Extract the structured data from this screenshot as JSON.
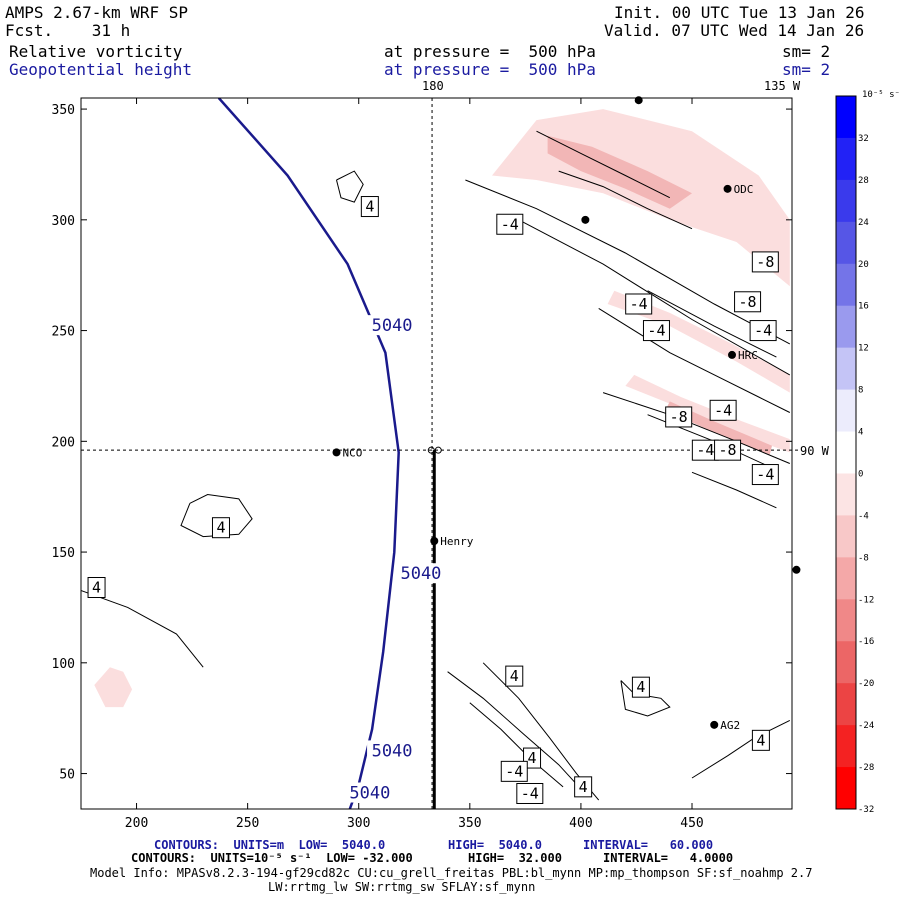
{
  "header": {
    "model": "AMPS 2.67-km WRF SP",
    "forecast": "Fcst.    31 h",
    "init": "Init. 00 UTC Tue 13 Jan 26",
    "valid": "Valid. 07 UTC Wed 14 Jan 26",
    "field1": "Relative vorticity",
    "field2": "Geopotential height",
    "pressure1": "at pressure =  500 hPa",
    "pressure2": "at pressure =  500 hPa",
    "sm1": "sm= 2",
    "sm2": "sm= 2"
  },
  "map": {
    "top_lon1": "180",
    "top_lon2": "135 W",
    "right_lon": "90 W",
    "stations": [
      "NCO",
      "Henry",
      "HRC",
      "AG2",
      "ODC"
    ]
  },
  "chart_data": {
    "type": "contour",
    "title": "Relative vorticity / Geopotential height at 500 hPa",
    "x_ticks": [
      200,
      250,
      300,
      350,
      400,
      450
    ],
    "y_ticks": [
      50,
      100,
      150,
      200,
      250,
      300,
      350
    ],
    "xlim": [
      175,
      495
    ],
    "ylim": [
      34,
      355
    ],
    "height_contours": [
      {
        "value": 5040,
        "label": "5040",
        "points": [
          [
            237,
            355
          ],
          [
            268,
            320
          ],
          [
            295,
            280
          ],
          [
            312,
            240
          ],
          [
            318,
            195
          ],
          [
            316,
            150
          ],
          [
            311,
            105
          ],
          [
            306,
            70
          ],
          [
            300,
            45
          ],
          [
            296,
            34
          ]
        ]
      }
    ],
    "height_labels": [
      {
        "text": "5040",
        "x": 315,
        "y": 252
      },
      {
        "text": "5040",
        "x": 328,
        "y": 140
      },
      {
        "text": "5040",
        "x": 315,
        "y": 60
      },
      {
        "text": "5040",
        "x": 305,
        "y": 41
      }
    ],
    "vorticity_labels": [
      {
        "text": "4",
        "x": 305,
        "y": 306
      },
      {
        "text": "4",
        "x": 238,
        "y": 161
      },
      {
        "text": "4",
        "x": 182,
        "y": 134
      },
      {
        "text": "4",
        "x": 370,
        "y": 94
      },
      {
        "text": "4",
        "x": 378,
        "y": 57
      },
      {
        "text": "4",
        "x": 401,
        "y": 44
      },
      {
        "text": "4",
        "x": 427,
        "y": 89
      },
      {
        "text": "4",
        "x": 481,
        "y": 65
      },
      {
        "text": "-4",
        "x": 368,
        "y": 298
      },
      {
        "text": "-4",
        "x": 426,
        "y": 262
      },
      {
        "text": "-4",
        "x": 434,
        "y": 250
      },
      {
        "text": "-4",
        "x": 464,
        "y": 214
      },
      {
        "text": "-4",
        "x": 456,
        "y": 196
      },
      {
        "text": "-4",
        "x": 483,
        "y": 185
      },
      {
        "text": "-4",
        "x": 482,
        "y": 250
      },
      {
        "text": "-4",
        "x": 370,
        "y": 51
      },
      {
        "text": "-4",
        "x": 377,
        "y": 41
      },
      {
        "text": "-8",
        "x": 483,
        "y": 281
      },
      {
        "text": "-8",
        "x": 475,
        "y": 263
      },
      {
        "text": "-8",
        "x": 444,
        "y": 211
      },
      {
        "text": "-8",
        "x": 466,
        "y": 196
      }
    ],
    "vorticity_contours": [
      {
        "value": 4,
        "points": [
          [
            224,
            172
          ],
          [
            232,
            176
          ],
          [
            246,
            174
          ],
          [
            252,
            165
          ],
          [
            246,
            158
          ],
          [
            230,
            157
          ],
          [
            220,
            162
          ],
          [
            224,
            172
          ]
        ]
      },
      {
        "value": 4,
        "points": [
          [
            174,
            133
          ],
          [
            196,
            125
          ],
          [
            218,
            113
          ],
          [
            230,
            98
          ]
        ]
      },
      {
        "value": 4,
        "points": [
          [
            340,
            96
          ],
          [
            356,
            84
          ],
          [
            374,
            68
          ],
          [
            390,
            54
          ],
          [
            401,
            42
          ]
        ]
      },
      {
        "value": 4,
        "points": [
          [
            356,
            100
          ],
          [
            372,
            84
          ],
          [
            386,
            66
          ],
          [
            398,
            50
          ],
          [
            408,
            38
          ]
        ]
      },
      {
        "value": 4,
        "points": [
          [
            418,
            92
          ],
          [
            424,
            86
          ],
          [
            436,
            84
          ],
          [
            440,
            80
          ],
          [
            430,
            76
          ],
          [
            420,
            79
          ],
          [
            418,
            92
          ]
        ]
      },
      {
        "value": 4,
        "points": [
          [
            450,
            48
          ],
          [
            466,
            58
          ],
          [
            478,
            66
          ],
          [
            494,
            74
          ]
        ]
      },
      {
        "value": 4,
        "points": [
          [
            290,
            318
          ],
          [
            298,
            322
          ],
          [
            302,
            316
          ],
          [
            298,
            308
          ],
          [
            292,
            310
          ],
          [
            290,
            318
          ]
        ]
      },
      {
        "value": -4,
        "points": [
          [
            348,
            318
          ],
          [
            380,
            305
          ],
          [
            420,
            285
          ],
          [
            460,
            262
          ],
          [
            494,
            244
          ]
        ]
      },
      {
        "value": -4,
        "points": [
          [
            372,
            300
          ],
          [
            410,
            280
          ],
          [
            450,
            255
          ],
          [
            494,
            230
          ]
        ]
      },
      {
        "value": -4,
        "points": [
          [
            408,
            260
          ],
          [
            440,
            240
          ],
          [
            480,
            220
          ],
          [
            494,
            213
          ]
        ]
      },
      {
        "value": -4,
        "points": [
          [
            410,
            222
          ],
          [
            440,
            212
          ],
          [
            470,
            200
          ],
          [
            494,
            190
          ]
        ]
      },
      {
        "value": -4,
        "points": [
          [
            450,
            186
          ],
          [
            470,
            178
          ],
          [
            488,
            170
          ]
        ]
      },
      {
        "value": -4,
        "points": [
          [
            350,
            82
          ],
          [
            364,
            70
          ],
          [
            378,
            56
          ],
          [
            392,
            44
          ]
        ]
      },
      {
        "value": -8,
        "points": [
          [
            380,
            340
          ],
          [
            400,
            330
          ],
          [
            420,
            320
          ],
          [
            440,
            310
          ]
        ]
      },
      {
        "value": -8,
        "points": [
          [
            390,
            322
          ],
          [
            410,
            315
          ],
          [
            430,
            305
          ],
          [
            450,
            296
          ]
        ]
      },
      {
        "value": -8,
        "points": [
          [
            430,
            268
          ],
          [
            460,
            252
          ],
          [
            488,
            238
          ]
        ]
      },
      {
        "value": -8,
        "points": [
          [
            430,
            212
          ],
          [
            460,
            200
          ],
          [
            486,
            188
          ]
        ]
      }
    ],
    "shaded_regions": [
      {
        "level": -4,
        "points": [
          [
            360,
            320
          ],
          [
            380,
            345
          ],
          [
            410,
            350
          ],
          [
            450,
            340
          ],
          [
            480,
            320
          ],
          [
            494,
            300
          ],
          [
            494,
            270
          ],
          [
            470,
            290
          ],
          [
            440,
            300
          ],
          [
            410,
            312
          ],
          [
            380,
            318
          ],
          [
            360,
            320
          ]
        ]
      },
      {
        "level": -4,
        "points": [
          [
            412,
            262
          ],
          [
            440,
            252
          ],
          [
            470,
            236
          ],
          [
            494,
            222
          ],
          [
            494,
            230
          ],
          [
            468,
            244
          ],
          [
            440,
            258
          ],
          [
            415,
            268
          ],
          [
            412,
            262
          ]
        ]
      },
      {
        "level": -4,
        "points": [
          [
            420,
            225
          ],
          [
            450,
            213
          ],
          [
            480,
            200
          ],
          [
            494,
            195
          ],
          [
            494,
            201
          ],
          [
            470,
            210
          ],
          [
            445,
            220
          ],
          [
            424,
            230
          ],
          [
            420,
            225
          ]
        ]
      },
      {
        "level": -4,
        "points": [
          [
            181,
            90
          ],
          [
            188,
            98
          ],
          [
            194,
            96
          ],
          [
            198,
            88
          ],
          [
            194,
            80
          ],
          [
            186,
            80
          ],
          [
            181,
            90
          ]
        ]
      },
      {
        "level": -8,
        "points": [
          [
            385,
            338
          ],
          [
            405,
            333
          ],
          [
            430,
            322
          ],
          [
            450,
            312
          ],
          [
            440,
            305
          ],
          [
            420,
            314
          ],
          [
            400,
            322
          ],
          [
            385,
            330
          ],
          [
            385,
            338
          ]
        ]
      },
      {
        "level": -8,
        "points": [
          [
            438,
            214
          ],
          [
            460,
            204
          ],
          [
            485,
            194
          ],
          [
            486,
            198
          ],
          [
            460,
            209
          ],
          [
            440,
            218
          ],
          [
            438,
            214
          ]
        ]
      }
    ],
    "points": [
      {
        "name": "NCO",
        "x": 290,
        "y": 195
      },
      {
        "name": "Henry",
        "x": 334,
        "y": 155
      },
      {
        "name": "HRC",
        "x": 468,
        "y": 239
      },
      {
        "name": "AG2",
        "x": 460,
        "y": 72
      },
      {
        "name": "ODC",
        "x": 466,
        "y": 314
      },
      {
        "name": "",
        "x": 402,
        "y": 300
      },
      {
        "name": "",
        "x": 426,
        "y": 354
      },
      {
        "name": "",
        "x": 497,
        "y": 142
      }
    ],
    "cross_section_line": [
      [
        334,
        196
      ],
      [
        334,
        34
      ]
    ],
    "guide_lines": {
      "x": 333,
      "y": 196
    }
  },
  "colorbar": {
    "unit": "10⁻⁵ s⁻¹",
    "ticks": [
      "32",
      "28",
      "24",
      "20",
      "16",
      "12",
      "8",
      "4",
      "0",
      "-4",
      "-8",
      "-12",
      "-16",
      "-20",
      "-24",
      "-28",
      "-32"
    ],
    "colors": [
      "#0000ff",
      "#2222f6",
      "#3a3aec",
      "#5656e6",
      "#7474e8",
      "#9a9aee",
      "#c4c4f6",
      "#ececfc",
      "#ffffff",
      "#fce4e4",
      "#f8c8c8",
      "#f4a8a8",
      "#f08888",
      "#ec6666",
      "#ec4444",
      "#f42222",
      "#ff0000"
    ]
  },
  "footer": {
    "line1_a": "CONTOURS:  UNITS=m  LOW=  5040.0",
    "line1_b": "HIGH=  5040.0",
    "line1_c": "INTERVAL=   60.000",
    "line2_a": "CONTOURS:  UNITS=10⁻⁵ s⁻¹  LOW= -32.000",
    "line2_b": "HIGH=  32.000",
    "line2_c": "INTERVAL=   4.0000",
    "line3": "Model Info: MPASv8.2.3-194-gf29cd82c CU:cu_grell_freitas PBL:bl_mynn MP:mp_thompson SF:sf_noahmp 2.7",
    "line4": "LW:rrtmg_lw SW:rrtmg_sw SFLAY:sf_mynn"
  }
}
